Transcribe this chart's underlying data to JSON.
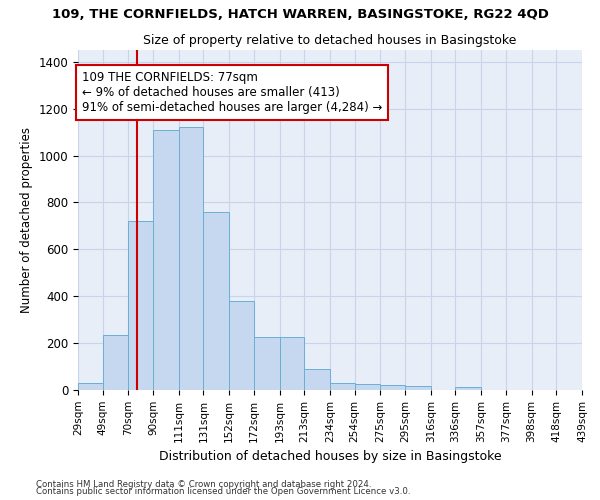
{
  "title": "109, THE CORNFIELDS, HATCH WARREN, BASINGSTOKE, RG22 4QD",
  "subtitle": "Size of property relative to detached houses in Basingstoke",
  "xlabel": "Distribution of detached houses by size in Basingstoke",
  "ylabel": "Number of detached properties",
  "footnote1": "Contains HM Land Registry data © Crown copyright and database right 2024.",
  "footnote2": "Contains public sector information licensed under the Open Government Licence v3.0.",
  "annotation_line1": "109 THE CORNFIELDS: 77sqm",
  "annotation_line2": "← 9% of detached houses are smaller (413)",
  "annotation_line3": "91% of semi-detached houses are larger (4,284) →",
  "property_size": 77,
  "bin_edges": [
    29,
    49,
    70,
    90,
    111,
    131,
    152,
    172,
    193,
    213,
    234,
    254,
    275,
    295,
    316,
    336,
    357,
    377,
    398,
    418,
    439
  ],
  "bar_heights": [
    30,
    235,
    720,
    1110,
    1120,
    760,
    380,
    225,
    225,
    90,
    30,
    25,
    22,
    18,
    0,
    12,
    0,
    0,
    0,
    0
  ],
  "bar_color": "#C5D8F0",
  "bar_edge_color": "#6BAED6",
  "vline_color": "#CC0000",
  "vline_x": 77,
  "annotation_box_color": "#CC0000",
  "background_color": "#FFFFFF",
  "plot_bg_color": "#E8EEF8",
  "grid_color": "#C8D4E8",
  "ylim": [
    0,
    1450
  ],
  "yticks": [
    0,
    200,
    400,
    600,
    800,
    1000,
    1200,
    1400
  ]
}
